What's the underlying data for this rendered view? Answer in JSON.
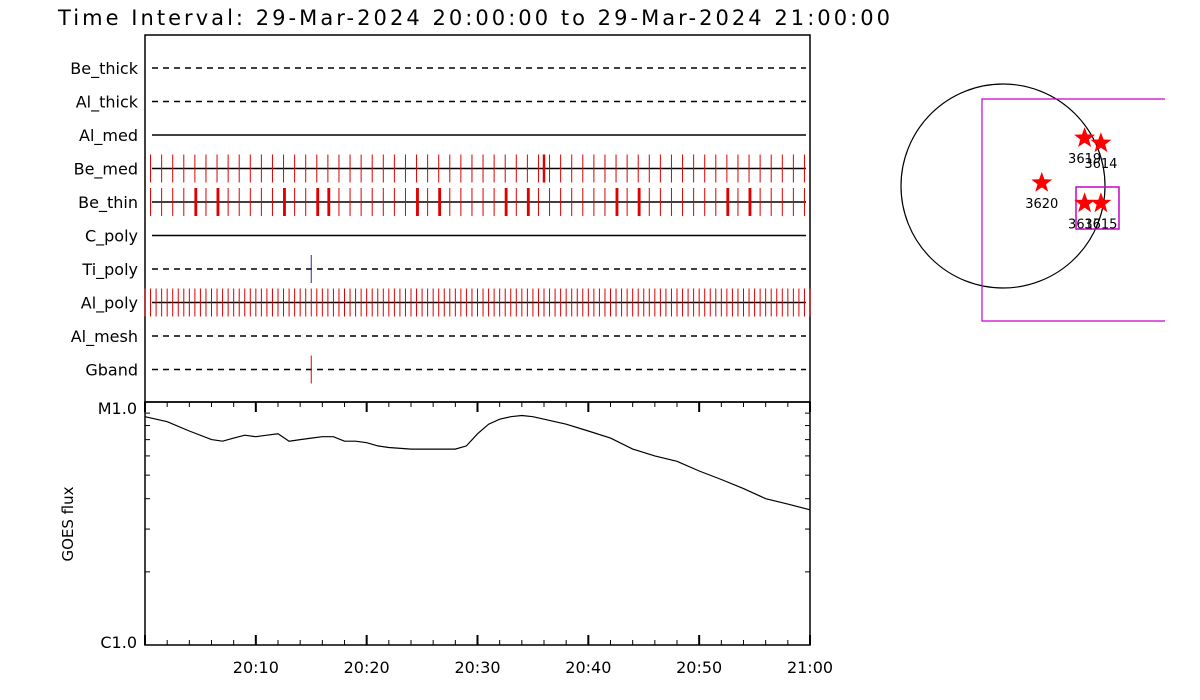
{
  "title": "Time Interval: 29-Mar-2024 20:00:00 to 29-Mar-2024 21:00:00",
  "colors": {
    "exposure": "#e00000",
    "tipoly_mark": "#2a2aaa",
    "box": "#c800c8",
    "star": "#ff0000",
    "line": "#000000"
  },
  "chart_data": [
    {
      "type": "timeline",
      "x_range_minutes": [
        0,
        60
      ],
      "rows": [
        {
          "label": "Be_thick",
          "style": "dashed",
          "ticks": []
        },
        {
          "label": "Al_thick",
          "style": "dashed",
          "ticks": []
        },
        {
          "label": "Al_med",
          "style": "solid",
          "ticks": []
        },
        {
          "label": "Be_med",
          "style": "solid",
          "tick_start": 0.5,
          "tick_step": 1.0,
          "tick_end": 59.5,
          "extra_ticks": [
            36.0
          ]
        },
        {
          "label": "Be_thin",
          "style": "solid",
          "tick_start": 0.5,
          "tick_step": 1.0,
          "tick_end": 59.5,
          "extra_ticks": [
            4.6,
            6.6,
            12.6,
            15.6,
            16.6,
            24.6,
            26.6,
            32.6,
            34.6,
            42.6,
            44.6,
            52.6,
            54.6
          ]
        },
        {
          "label": "C_poly",
          "style": "solid",
          "ticks": []
        },
        {
          "label": "Ti_poly",
          "style": "dashed",
          "ticks": [
            15.0
          ],
          "tick_color": "blue"
        },
        {
          "label": "Al_poly",
          "style": "solid",
          "tick_start": 0.0,
          "tick_step": 0.5,
          "tick_end": 60.0,
          "extra_ticks": []
        },
        {
          "label": "Al_mesh",
          "style": "dashed",
          "ticks": []
        },
        {
          "label": "Gband",
          "style": "dashed",
          "ticks": [
            15.0
          ]
        }
      ]
    },
    {
      "type": "line",
      "scale": "log",
      "ylabel": "GOES flux",
      "ytick_labels": [
        "M1.0",
        "C1.0"
      ],
      "ylim": [
        1e-06,
        1e-05
      ],
      "xtick_labels": [
        "20:10",
        "20:20",
        "20:30",
        "20:40",
        "20:50",
        "21:00"
      ],
      "xtick_minutes": [
        10,
        20,
        30,
        40,
        50,
        60
      ],
      "x": [
        0,
        2,
        4,
        6,
        7,
        8,
        9,
        10,
        11,
        12,
        13,
        14,
        15,
        16,
        17,
        18,
        19,
        20,
        21,
        22,
        24,
        26,
        28,
        29,
        30,
        31,
        32,
        33,
        34,
        35,
        36,
        38,
        40,
        42,
        44,
        46,
        48,
        50,
        52,
        54,
        56,
        58,
        60
      ],
      "y": [
        8.7e-06,
        8.3e-06,
        7.6e-06,
        7e-06,
        6.9e-06,
        7.1e-06,
        7.3e-06,
        7.2e-06,
        7.3e-06,
        7.4e-06,
        6.9e-06,
        7e-06,
        7.1e-06,
        7.2e-06,
        7.2e-06,
        6.9e-06,
        6.9e-06,
        6.8e-06,
        6.6e-06,
        6.5e-06,
        6.4e-06,
        6.4e-06,
        6.4e-06,
        6.6e-06,
        7.4e-06,
        8.1e-06,
        8.5e-06,
        8.7e-06,
        8.8e-06,
        8.7e-06,
        8.5e-06,
        8.1e-06,
        7.6e-06,
        7.1e-06,
        6.4e-06,
        6e-06,
        5.7e-06,
        5.2e-06,
        4.8e-06,
        4.4e-06,
        4e-06,
        3.8e-06,
        3.6e-06
      ]
    },
    {
      "type": "solar_map",
      "regions": [
        {
          "label": "3619",
          "x": 0.8,
          "y": 0.47
        },
        {
          "label": "3614",
          "x": 0.96,
          "y": 0.42
        },
        {
          "label": "3620",
          "x": 0.38,
          "y": 0.03
        },
        {
          "label": "3617",
          "x": 0.8,
          "y": -0.17
        },
        {
          "label": "3615",
          "x": 0.96,
          "y": -0.17
        }
      ]
    }
  ]
}
